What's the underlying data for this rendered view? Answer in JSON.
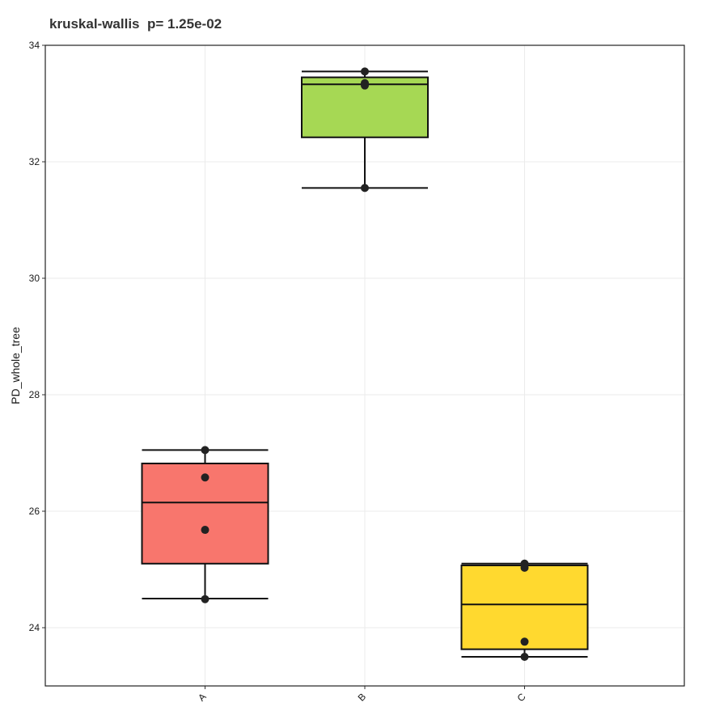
{
  "chart_data": {
    "type": "box",
    "title": "kruskal-wallis  p= 1.25e-02",
    "xlabel": "",
    "ylabel": "PD_whole_tree",
    "ylim": [
      23.0,
      34.0
    ],
    "yticks": [
      24,
      26,
      28,
      30,
      32,
      34
    ],
    "grid": true,
    "categories": [
      "A",
      "B",
      "C"
    ],
    "boxes": [
      {
        "category": "A",
        "color": "#F8766D",
        "whisker_low": 24.5,
        "q1": 25.1,
        "median": 26.15,
        "q3": 26.82,
        "whisker_high": 27.05,
        "points": [
          27.05,
          26.58,
          25.68,
          24.49
        ]
      },
      {
        "category": "B",
        "color": "#A6D854",
        "whisker_low": 31.55,
        "q1": 32.42,
        "median": 33.33,
        "q3": 33.45,
        "whisker_high": 33.55,
        "points": [
          33.55,
          33.35,
          33.31,
          31.55
        ]
      },
      {
        "category": "C",
        "color": "#FFD92F",
        "whisker_low": 23.5,
        "q1": 23.63,
        "median": 24.4,
        "q3": 25.07,
        "whisker_high": 25.1,
        "points": [
          25.1,
          25.03,
          23.76,
          23.5
        ]
      }
    ]
  }
}
